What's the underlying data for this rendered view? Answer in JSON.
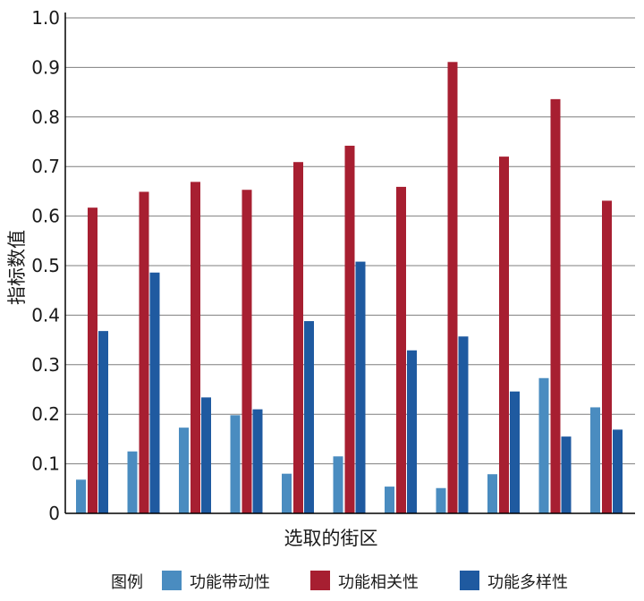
{
  "chart_data": {
    "type": "bar",
    "xlabel": "选取的街区",
    "ylabel": "指标数值",
    "ylim": [
      0,
      1.0
    ],
    "yticks": [
      0,
      0.1,
      0.2,
      0.3,
      0.4,
      0.5,
      0.6,
      0.7,
      0.8,
      0.9,
      1.0
    ],
    "ytick_labels": [
      "0",
      "0.1",
      "0.2",
      "0.3",
      "0.4",
      "0.5",
      "0.6",
      "0.7",
      "0.8",
      "0.9",
      "1.0"
    ],
    "grid": "horizontal",
    "legend_title": "图例",
    "legend_position": "bottom",
    "categories": [
      "",
      "",
      "",
      "",
      "",
      "",
      "",
      "",
      "",
      "",
      ""
    ],
    "series": [
      {
        "name": "功能带动性",
        "color": "#4a8cc0",
        "values": [
          0.068,
          0.125,
          0.173,
          0.198,
          0.08,
          0.115,
          0.054,
          0.051,
          0.079,
          0.273,
          0.214
        ]
      },
      {
        "name": "功能相关性",
        "color": "#a71f31",
        "values": [
          0.617,
          0.649,
          0.669,
          0.653,
          0.709,
          0.742,
          0.659,
          0.911,
          0.72,
          0.836,
          0.631
        ]
      },
      {
        "name": "功能多样性",
        "color": "#1f5aa0",
        "values": [
          0.368,
          0.486,
          0.234,
          0.21,
          0.388,
          0.508,
          0.329,
          0.357,
          0.246,
          0.155,
          0.169
        ]
      }
    ]
  }
}
